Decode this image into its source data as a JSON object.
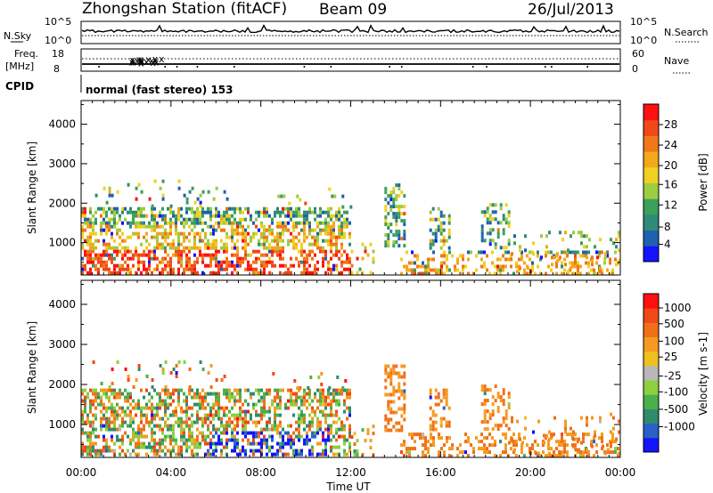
{
  "header": {
    "station": "Zhongshan Station (fitACF)",
    "beam": "Beam 09",
    "date": "26/Jul/2013"
  },
  "top_panels": {
    "nsky_label": "N.Sky",
    "nsearch_label": "N.Search",
    "nsky_ticks": [
      "10^5",
      "10^0"
    ],
    "nsearch_ticks": [
      "10^5",
      "10^0"
    ],
    "freq_label": "Freq.",
    "freq_unit": "[MHz]",
    "freq_ticks": [
      "18",
      "8"
    ],
    "nave_label": "Nave",
    "nave_ticks": [
      "60",
      "0"
    ],
    "cpid_label": "CPID",
    "cpid_text": "normal (fast stereo) 153"
  },
  "chart_data": [
    {
      "type": "heatmap",
      "name": "power",
      "ylabel": "Slant Range [km]",
      "xlabel": "",
      "yticks": [
        1000,
        2000,
        3000,
        4000
      ],
      "ylim": [
        180,
        4600
      ],
      "xlim_hours": [
        0,
        24
      ],
      "colorbar": {
        "label": "Power [dB]",
        "ticks": [
          "4",
          "8",
          "12",
          "16",
          "20",
          "24",
          "28"
        ],
        "colors": [
          "#1414ff",
          "#2060b0",
          "#2f8a78",
          "#3aa05a",
          "#9ccc40",
          "#f0d020",
          "#f3a81a",
          "#f07818",
          "#f04818",
          "#ff1010"
        ]
      }
    },
    {
      "type": "heatmap",
      "name": "velocity",
      "ylabel": "Slant Range [km]",
      "xlabel": "Time UT",
      "xticks": [
        "00:00",
        "04:00",
        "08:00",
        "12:00",
        "16:00",
        "20:00",
        "00:00"
      ],
      "yticks": [
        1000,
        2000,
        3000,
        4000
      ],
      "ylim": [
        180,
        4600
      ],
      "xlim_hours": [
        0,
        24
      ],
      "colorbar": {
        "label": "Velocity [m s-1]",
        "ticks": [
          "1000",
          "500",
          "100",
          "25",
          "-25",
          "-100",
          "-500",
          "-1000"
        ],
        "colors": [
          "#1414ff",
          "#2a60c8",
          "#2e8c6e",
          "#4ab048",
          "#8cd040",
          "#b8b8b8",
          "#f0c020",
          "#f59a20",
          "#f07018",
          "#f04818",
          "#ff1010"
        ]
      }
    }
  ]
}
